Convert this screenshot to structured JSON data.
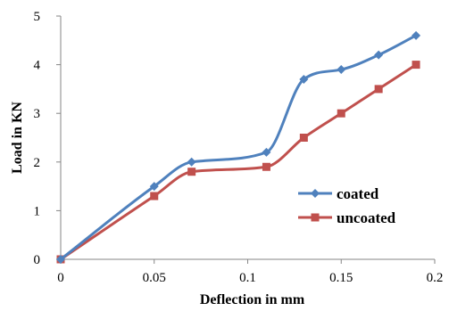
{
  "chart_data": {
    "type": "line",
    "title": "",
    "xlabel": "Deflection in mm",
    "ylabel": "Load in KN",
    "xlim": [
      0,
      0.2
    ],
    "ylim": [
      0,
      5
    ],
    "x_ticks": [
      0,
      0.05,
      0.1,
      0.15,
      0.2
    ],
    "x_tick_labels": [
      "0",
      "0.05",
      "0.1",
      "0.15",
      "0.2"
    ],
    "y_ticks": [
      0,
      1,
      2,
      3,
      4,
      5
    ],
    "y_tick_labels": [
      "0",
      "1",
      "2",
      "3",
      "4",
      "5"
    ],
    "grid": false,
    "legend_position": "right",
    "smooth": true,
    "series": [
      {
        "name": "coated",
        "color": "#4f81bd",
        "marker": "diamond",
        "x": [
          0,
          0.05,
          0.07,
          0.11,
          0.13,
          0.15,
          0.17,
          0.19
        ],
        "y": [
          0,
          1.5,
          2.0,
          2.2,
          3.7,
          3.9,
          4.2,
          4.6
        ]
      },
      {
        "name": "uncoated",
        "color": "#c0504d",
        "marker": "square",
        "x": [
          0,
          0.05,
          0.07,
          0.11,
          0.13,
          0.15,
          0.17,
          0.19
        ],
        "y": [
          0,
          1.3,
          1.8,
          1.9,
          2.5,
          3.0,
          3.5,
          4.0
        ]
      }
    ]
  }
}
